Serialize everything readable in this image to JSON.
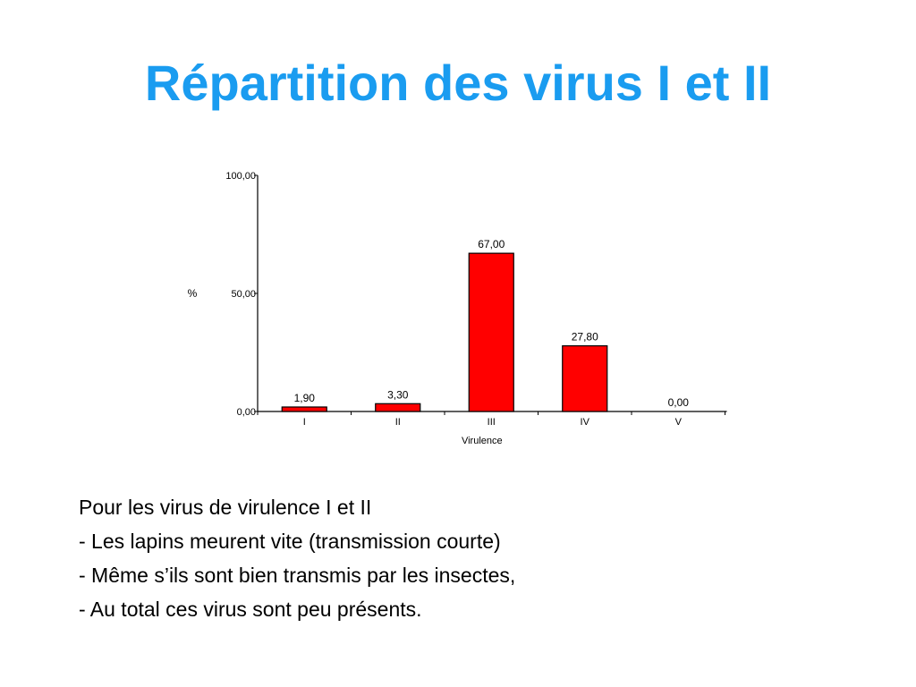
{
  "slide": {
    "title": "Répartition des virus I et II"
  },
  "chart_data": {
    "type": "bar",
    "categories": [
      "I",
      "II",
      "III",
      "IV",
      "V"
    ],
    "values": [
      1.9,
      3.3,
      67.0,
      27.8,
      0.0
    ],
    "data_labels": [
      "1,90",
      "3,30",
      "67,00",
      "27,80",
      "0,00"
    ],
    "title": "",
    "xlabel": "Virulence",
    "ylabel": "%",
    "ylim": [
      0,
      100
    ],
    "yticks": [
      {
        "value": 100,
        "label": "100,00"
      },
      {
        "value": 50,
        "label": "50,00"
      },
      {
        "value": 0,
        "label": "0,00"
      }
    ],
    "grid": false,
    "bar_color": "#ff0000",
    "bar_edge_color": "#000000"
  },
  "text_block": {
    "lines": [
      "Pour les virus de virulence I et II",
      "- Les lapins meurent vite (transmission courte)",
      "- Même s’ils sont bien transmis par les insectes,",
      "- Au total ces virus sont peu présents."
    ]
  },
  "colors": {
    "title": "#1a9cf0",
    "bars": "#ff0000"
  }
}
